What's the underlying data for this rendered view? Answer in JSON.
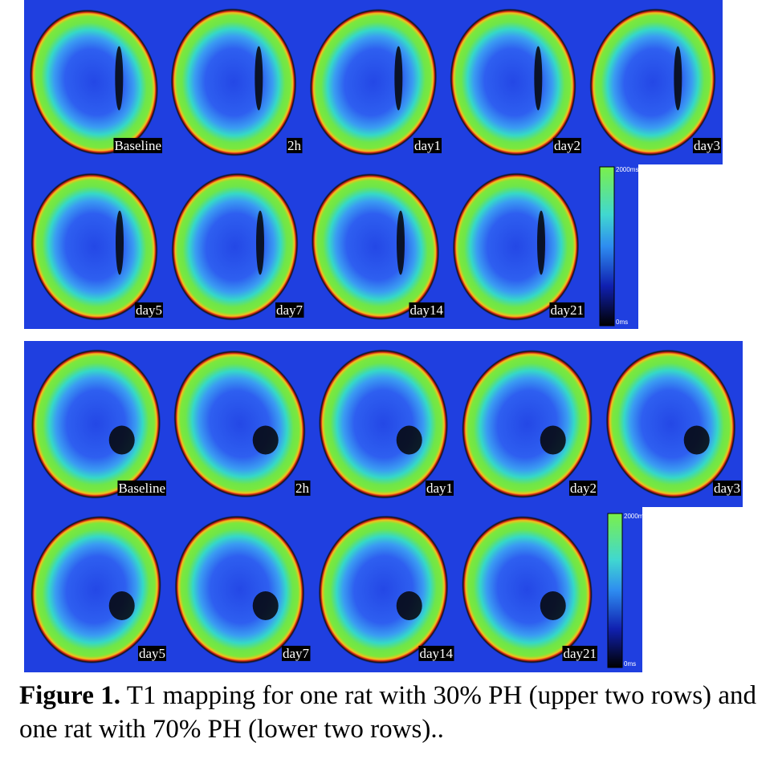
{
  "panels": [
    {
      "rows": [
        [
          "Baseline",
          "2h",
          "day1",
          "day2",
          "day3"
        ],
        [
          "day5",
          "day7",
          "day14",
          "day21"
        ]
      ],
      "colorbar": {
        "max": "2000ms",
        "min": "0ms"
      }
    },
    {
      "rows": [
        [
          "Baseline",
          "2h",
          "day1",
          "day2",
          "day3"
        ],
        [
          "day5",
          "day7",
          "day14",
          "day21"
        ]
      ],
      "colorbar": {
        "max": "2000ms",
        "min": "0ms"
      }
    }
  ],
  "caption": {
    "label": "Figure 1.",
    "text": "T1 mapping for one rat with 30% PH (upper two rows) and one rat with 70% PH (lower two rows).."
  }
}
